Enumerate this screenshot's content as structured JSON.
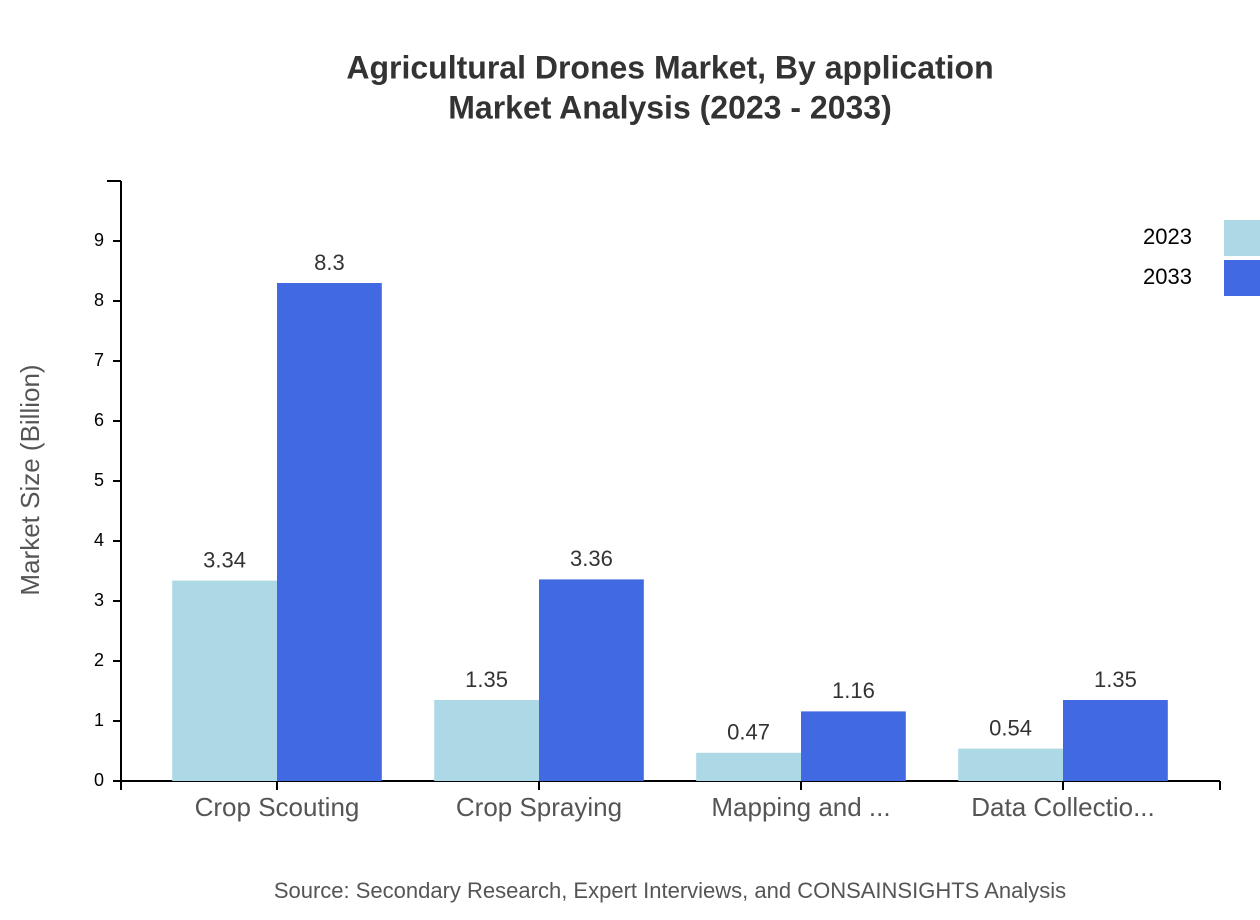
{
  "chart_data": {
    "type": "bar",
    "title": "Agricultural Drones Market, By application",
    "subtitle": "Market Analysis (2023 - 2033)",
    "y_label": "Market Size (Billion)",
    "source": "Source: Secondary Research, Expert Interviews, and CONSAINSIGHTS Analysis",
    "categories": [
      "Crop Scouting",
      "Crop Spraying",
      "Mapping and ...",
      "Data Collectio..."
    ],
    "series": [
      {
        "name": "2023",
        "color": "#add8e6",
        "values": [
          3.34,
          1.35,
          0.47,
          0.54
        ]
      },
      {
        "name": "2033",
        "color": "#4169e1",
        "values": [
          8.3,
          3.36,
          1.16,
          1.35
        ]
      }
    ],
    "ylim": [
      0,
      10
    ],
    "yticks": [
      0,
      1,
      2,
      3,
      4,
      5,
      6,
      7,
      8,
      9
    ],
    "legend": "top-right",
    "grid": false
  }
}
